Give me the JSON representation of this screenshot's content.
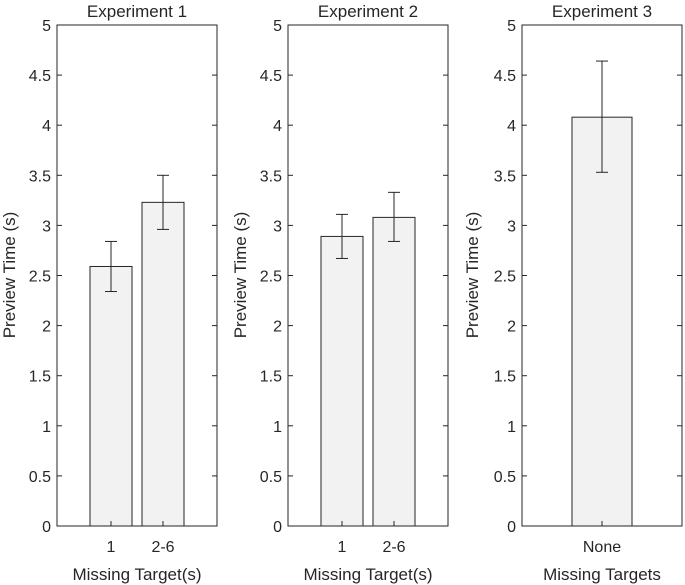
{
  "chart_data": [
    {
      "type": "bar",
      "title": "Experiment 1",
      "xlabel": "Missing Target(s)",
      "ylabel": "Preview Time (s)",
      "ylim": [
        0,
        5
      ],
      "yticks": [
        "0",
        "0.5",
        "1",
        "1.5",
        "2",
        "2.5",
        "3",
        "3.5",
        "4",
        "4.5",
        "5"
      ],
      "categories": [
        "1",
        "2-6"
      ],
      "values": [
        2.59,
        3.23
      ],
      "error_low": [
        2.34,
        2.96
      ],
      "error_high": [
        2.84,
        3.5
      ]
    },
    {
      "type": "bar",
      "title": "Experiment 2",
      "xlabel": "Missing Target(s)",
      "ylabel": "Preview Time (s)",
      "ylim": [
        0,
        5
      ],
      "yticks": [
        "0",
        "0.5",
        "1",
        "1.5",
        "2",
        "2.5",
        "3",
        "3.5",
        "4",
        "4.5",
        "5"
      ],
      "categories": [
        "1",
        "2-6"
      ],
      "values": [
        2.89,
        3.08
      ],
      "error_low": [
        2.67,
        2.84
      ],
      "error_high": [
        3.11,
        3.33
      ]
    },
    {
      "type": "bar",
      "title": "Experiment 3",
      "xlabel": "Missing Targets",
      "ylabel": "Preview Time (s)",
      "ylim": [
        0,
        5
      ],
      "yticks": [
        "0",
        "0.5",
        "1",
        "1.5",
        "2",
        "2.5",
        "3",
        "3.5",
        "4",
        "4.5",
        "5"
      ],
      "categories": [
        "None"
      ],
      "values": [
        4.08
      ],
      "error_low": [
        3.53
      ],
      "error_high": [
        4.64
      ]
    }
  ],
  "colors": {
    "bar_fill": "#f2f2f2",
    "bar_stroke": "#262626",
    "axis": "#262626",
    "errorbar": "#262626"
  }
}
